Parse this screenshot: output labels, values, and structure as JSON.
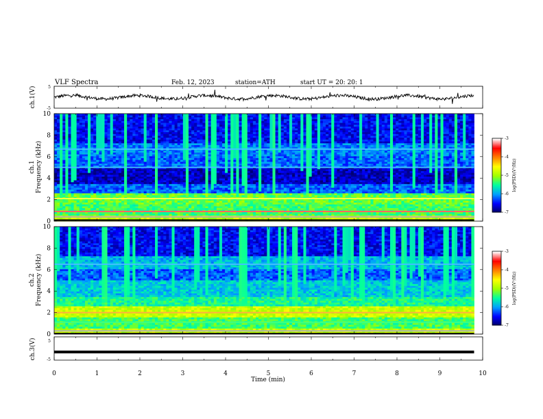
{
  "header": {
    "title": "VLF  Spectra",
    "date": "Feb. 12, 2023",
    "station": "station=ATH",
    "start": "start  UT  =   20: 20: 1"
  },
  "chart_data": {
    "type": "heatmap",
    "xlabel": "Time  (min)",
    "xlim": [
      0,
      10
    ],
    "x_ticks": [
      "0",
      "1",
      "2",
      "3",
      "4",
      "5",
      "6",
      "7",
      "8",
      "9",
      "10"
    ],
    "panels": [
      {
        "id": "ch1_wave",
        "type": "line",
        "ylabel": "ch.1(V)",
        "ylim": [
          -5,
          5
        ],
        "y_ticks": [
          "5",
          "-5"
        ],
        "level": 0.0
      },
      {
        "id": "ch1_spec",
        "type": "heatmap",
        "ylabel": "ch.1",
        "ylabel2": "Frequency  (kHz)",
        "ylim": [
          0,
          10
        ],
        "y_ticks": [
          "0",
          "2",
          "4",
          "6",
          "8",
          "10"
        ]
      },
      {
        "id": "ch2_spec",
        "type": "heatmap",
        "ylabel": "ch.2",
        "ylabel2": "Frequency  (kHz)",
        "ylim": [
          0,
          10
        ],
        "y_ticks": [
          "0",
          "2",
          "4",
          "6",
          "8",
          "10"
        ]
      },
      {
        "id": "ch3_wave",
        "type": "line",
        "ylabel": "ch.3(V)",
        "ylim": [
          -5,
          5
        ],
        "y_ticks": [
          "5",
          "0",
          "-5"
        ],
        "level": -1.5
      }
    ],
    "colorbar": {
      "label": "log(PSD)(V²/Hz)",
      "range": [
        -7,
        -3
      ],
      "ticks": [
        "-3",
        "-4",
        "-5",
        "-6",
        "-7"
      ],
      "colors": [
        "#000060",
        "#0000ff",
        "#00a0ff",
        "#00ffa0",
        "#a0ff00",
        "#ffff00",
        "#ff8000",
        "#ff0000",
        "#ffffff"
      ]
    },
    "data_end_min": 9.8
  }
}
